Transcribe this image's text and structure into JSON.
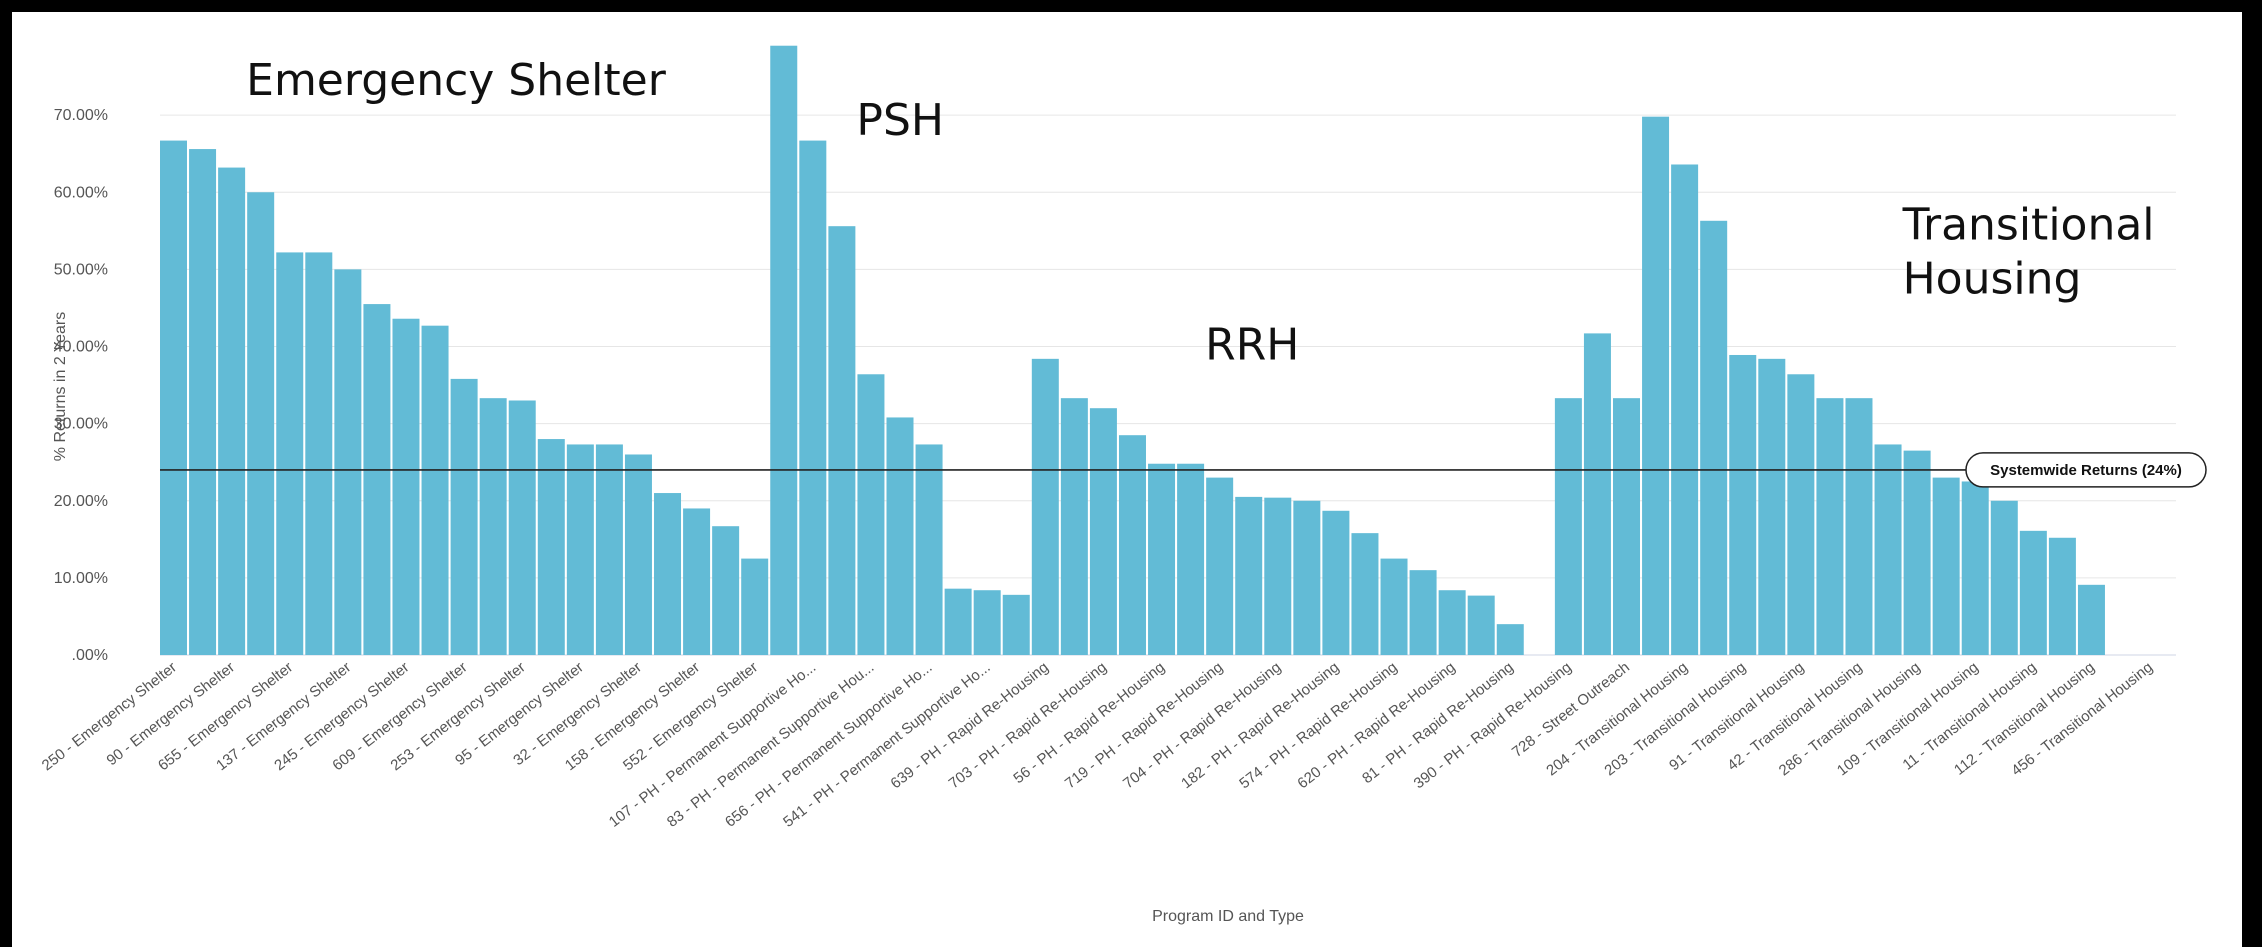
{
  "chart_data": {
    "type": "bar",
    "xlabel": "Program ID and Type",
    "ylabel": "% Returns in 2 Years",
    "ylim": [
      0,
      80
    ],
    "yticks": [
      ".00%",
      "10.00%",
      "20.00%",
      "30.00%",
      "40.00%",
      "50.00%",
      "60.00%",
      "70.00%"
    ],
    "grid": true,
    "bar_color": "#62bbd6",
    "values": [
      66.7,
      65.6,
      63.2,
      60.0,
      52.2,
      52.2,
      50.0,
      45.5,
      43.6,
      42.7,
      35.8,
      33.3,
      33.0,
      28.0,
      27.3,
      27.3,
      26.0,
      21.0,
      19.0,
      16.7,
      12.5,
      79.0,
      66.7,
      55.6,
      36.4,
      30.8,
      27.3,
      8.6,
      8.4,
      7.8,
      38.4,
      33.3,
      32.0,
      28.5,
      24.8,
      24.8,
      23.0,
      20.5,
      20.4,
      20.0,
      18.7,
      15.8,
      12.5,
      11.0,
      8.4,
      7.7,
      4.0,
      0,
      33.3,
      41.7,
      33.3,
      69.8,
      63.6,
      56.3,
      38.9,
      38.4,
      36.4,
      33.3,
      33.3,
      27.3,
      26.5,
      23.0,
      22.5,
      20.0,
      16.1,
      15.2,
      9.1
    ],
    "x_labels": [
      {
        "index": 0,
        "text": "250 - Emergency Shelter"
      },
      {
        "index": 2,
        "text": "90 - Emergency Shelter"
      },
      {
        "index": 4,
        "text": "655 - Emergency Shelter"
      },
      {
        "index": 6,
        "text": "137 - Emergency Shelter"
      },
      {
        "index": 8,
        "text": "245 - Emergency Shelter"
      },
      {
        "index": 10,
        "text": "609 - Emergency Shelter"
      },
      {
        "index": 12,
        "text": "253 - Emergency Shelter"
      },
      {
        "index": 14,
        "text": "95 - Emergency Shelter"
      },
      {
        "index": 16,
        "text": "32 - Emergency Shelter"
      },
      {
        "index": 18,
        "text": "158 - Emergency Shelter"
      },
      {
        "index": 20,
        "text": "552 - Emergency Shelter"
      },
      {
        "index": 22,
        "text": "107 - PH - Permanent Supportive Ho..."
      },
      {
        "index": 24,
        "text": "83 - PH - Permanent Supportive Hou..."
      },
      {
        "index": 26,
        "text": "656 - PH - Permanent Supportive Ho..."
      },
      {
        "index": 28,
        "text": "541 - PH - Permanent Supportive Ho..."
      },
      {
        "index": 30,
        "text": "639 - PH - Rapid Re-Housing"
      },
      {
        "index": 32,
        "text": "703 - PH - Rapid Re-Housing"
      },
      {
        "index": 34,
        "text": "56 - PH - Rapid Re-Housing"
      },
      {
        "index": 36,
        "text": "719 - PH - Rapid Re-Housing"
      },
      {
        "index": 38,
        "text": "704 - PH - Rapid Re-Housing"
      },
      {
        "index": 40,
        "text": "182 - PH - Rapid Re-Housing"
      },
      {
        "index": 42,
        "text": "574 - PH - Rapid Re-Housing"
      },
      {
        "index": 44,
        "text": "620 - PH - Rapid Re-Housing"
      },
      {
        "index": 46,
        "text": "81 - PH - Rapid Re-Housing"
      },
      {
        "index": 48,
        "text": "390 - PH - Rapid Re-Housing"
      },
      {
        "index": 50,
        "text": "728 - Street Outreach"
      },
      {
        "index": 52,
        "text": "204 - Transitional Housing"
      },
      {
        "index": 54,
        "text": "203 - Transitional Housing"
      },
      {
        "index": 56,
        "text": "91 - Transitional Housing"
      },
      {
        "index": 58,
        "text": "42 - Transitional Housing"
      },
      {
        "index": 60,
        "text": "286 - Transitional Housing"
      },
      {
        "index": 62,
        "text": "109 - Transitional Housing"
      },
      {
        "index": 64,
        "text": "11 - Transitional Housing"
      },
      {
        "index": 66,
        "text": "112 - Transitional Housing"
      },
      {
        "index": 68,
        "text": "456 - Transitional Housing"
      }
    ],
    "reference_line": {
      "value": 24,
      "label": "Systemwide Returns (24%)"
    },
    "annotations": [
      {
        "lines": [
          "Emergency Shelter"
        ],
        "anchor_index": 2.5,
        "value": 72.6
      },
      {
        "lines": [
          "PSH"
        ],
        "anchor_index": 23.5,
        "value": 67.4
      },
      {
        "lines": [
          "RRH"
        ],
        "anchor_index": 35.5,
        "value": 38.3
      },
      {
        "lines": [
          "Transitional",
          "Housing"
        ],
        "anchor_index": 59.5,
        "value": 53.9
      }
    ]
  }
}
